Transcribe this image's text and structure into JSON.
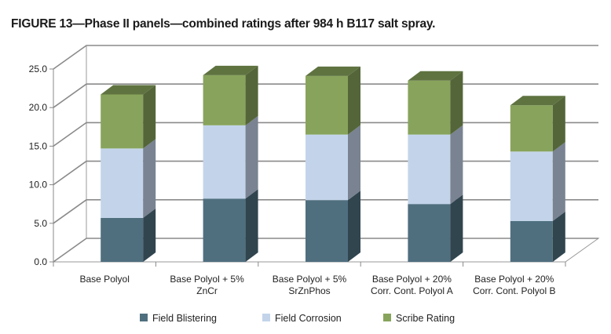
{
  "figure": {
    "title": "FIGURE 13—Phase II panels—combined ratings after 984 h B117 salt spray."
  },
  "chart_data": {
    "type": "bar",
    "stacked": true,
    "three_d": true,
    "title": "",
    "xlabel": "",
    "ylabel": "",
    "ylim": [
      0,
      25
    ],
    "yticks": [
      "0.0",
      "5.0",
      "10.0",
      "15.0",
      "20.0",
      "25.0"
    ],
    "ytick_values": [
      0,
      5,
      10,
      15,
      20,
      25
    ],
    "grid": true,
    "legend_position": "bottom",
    "categories": [
      [
        "Base Polyol"
      ],
      [
        "Base Polyol + 5%",
        "ZnCr"
      ],
      [
        "Base Polyol + 5%",
        "SrZnPhos"
      ],
      [
        "Base Polyol + 20%",
        "Corr. Cont. Polyol A"
      ],
      [
        "Base Polyol + 20%",
        "Corr. Cont. Polyol B"
      ]
    ],
    "series": [
      {
        "name": "Field Blistering",
        "color": "#4f6f7f",
        "values": [
          5.7,
          8.2,
          8.0,
          7.5,
          5.3
        ]
      },
      {
        "name": "Field Corrosion",
        "color": "#c3d4ea",
        "values": [
          9.0,
          9.5,
          8.5,
          9.0,
          9.0
        ]
      },
      {
        "name": "Scribe Rating",
        "color": "#88a45c",
        "values": [
          7.0,
          6.5,
          7.6,
          7.0,
          6.0
        ]
      }
    ]
  }
}
